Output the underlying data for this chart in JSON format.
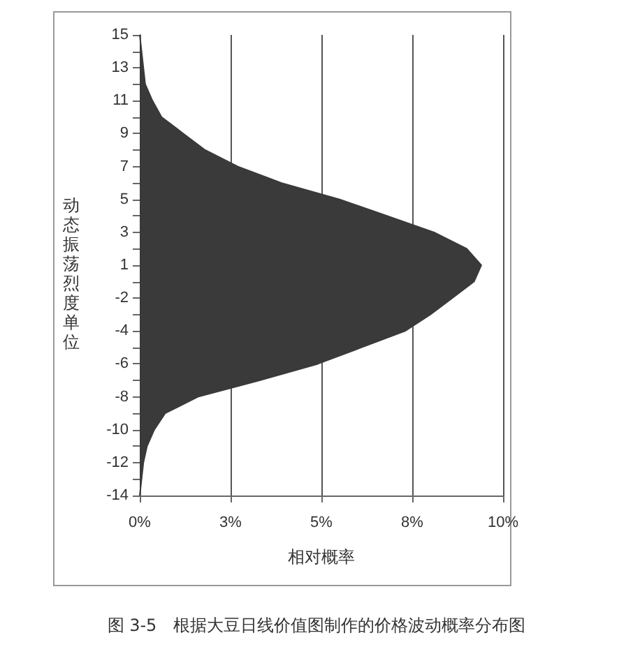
{
  "chart_data": {
    "type": "area",
    "orientation": "horizontal",
    "title": "图 3-5　根据大豆日线价值图制作的价格波动概率分布图",
    "xlabel": "相对概率",
    "ylabel": "动态振荡烈度单位",
    "categories": [
      "15",
      null,
      "13",
      null,
      "11",
      null,
      "9",
      null,
      "7",
      null,
      "5",
      null,
      "3",
      null,
      "1",
      null,
      "-2",
      null,
      "-4",
      null,
      "-6",
      null,
      "-8",
      null,
      "-10",
      null,
      "-12",
      null,
      "-14"
    ],
    "series": [
      {
        "color": "#3a3a3a",
        "values": [
          0,
          0.05,
          0.1,
          0.15,
          0.35,
          0.6,
          1.2,
          1.8,
          2.7,
          3.9,
          5.5,
          6.8,
          8.1,
          9.0,
          9.4,
          9.2,
          8.6,
          8.0,
          7.3,
          6.1,
          4.9,
          3.3,
          1.6,
          0.7,
          0.4,
          0.2,
          0.1,
          0.05,
          0
        ]
      }
    ],
    "xlim": [
      0,
      10
    ],
    "xticks": [
      {
        "value": 0,
        "label": "0%"
      },
      {
        "value": 2.5,
        "label": "3%"
      },
      {
        "value": 5,
        "label": "5%"
      },
      {
        "value": 7.5,
        "label": "8%"
      },
      {
        "value": 10,
        "label": "10%"
      }
    ],
    "grid": "x"
  }
}
